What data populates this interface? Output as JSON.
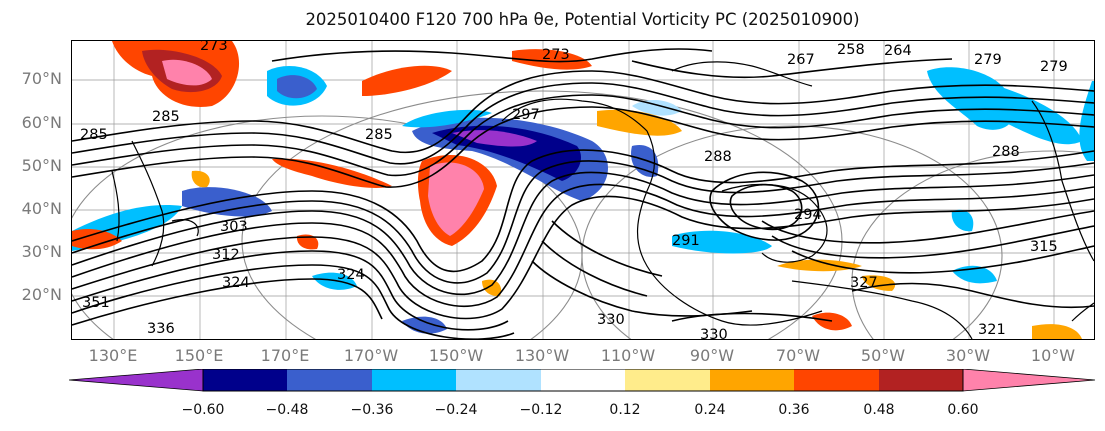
{
  "title": "2025010400 F120 700 hPa θe, Potential Vorticity PC (2025010900)",
  "map": {
    "lat_labels": [
      "70°N",
      "60°N",
      "50°N",
      "40°N",
      "30°N",
      "20°N"
    ],
    "lon_labels": [
      "130°E",
      "150°E",
      "170°E",
      "170°W",
      "150°W",
      "130°W",
      "110°W",
      "90°W",
      "70°W",
      "50°W",
      "30°W",
      "10°W"
    ],
    "contour_labels": [
      "273",
      "258",
      "267",
      "264",
      "279",
      "285",
      "297",
      "285",
      "273",
      "285",
      "288",
      "294",
      "303",
      "312",
      "291",
      "324",
      "330",
      "330",
      "336",
      "321",
      "315",
      "351",
      "327",
      "288",
      "279",
      "324"
    ]
  },
  "colorbar": {
    "ticks": [
      "−0.60",
      "−0.48",
      "−0.36",
      "−0.24",
      "−0.12",
      "0.12",
      "0.24",
      "0.36",
      "0.48",
      "0.60"
    ],
    "colors": [
      "#9932cc",
      "#00008b",
      "#3a5fcd",
      "#00bfff",
      "#b0e2ff",
      "#ffffff",
      "#ffec8b",
      "#ffa500",
      "#ff4500",
      "#b22222",
      "#ff82ab"
    ]
  }
}
